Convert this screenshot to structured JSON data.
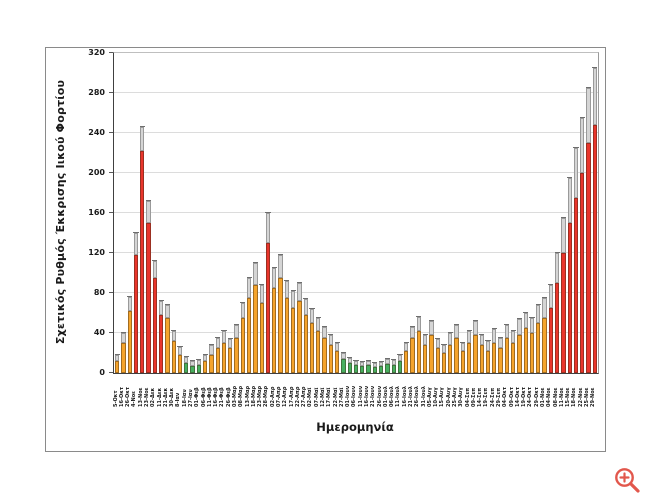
{
  "chart": {
    "box_border_color": "#8a8a8a",
    "axis_color": "#404040",
    "grid_color": "#dcdcdc",
    "error_fill": "#d5d5d5",
    "error_edge": "#9a9a9a",
    "error_cap": "#6e6e6e",
    "bar_outline": "rgba(60,40,20,0.45)"
  },
  "chart_data": {
    "type": "bar",
    "title": "",
    "xlabel": "Ημερομηνία",
    "ylabel": "Σχετικός Ρυθμός Έκκρισης Ιικού Φορτίου",
    "ylim": [
      0,
      320
    ],
    "y_tick_step": 40,
    "y_ticks": [
      0,
      40,
      80,
      120,
      160,
      200,
      240,
      280,
      320
    ],
    "grid": true,
    "legend": "none",
    "error_bars": "upper",
    "color_map": {
      "orange": "#F5A42C",
      "red": "#E9352C",
      "green": "#46AF5F"
    },
    "categories": [
      "5-Οκτ",
      "16-Οκτ",
      "26-Οκτ",
      "4-Νοε",
      "13-Νοε",
      "23-Νοε",
      "02-Δεκ",
      "11-Δεκ",
      "21-Δεκ",
      "30-Δεκ",
      "8-Ιαν",
      "18-Ιαν",
      "27-Ιαν",
      "01-Φεβ",
      "06-Φεβ",
      "11-Φεβ",
      "16-Φεβ",
      "21-Φεβ",
      "26-Φεβ",
      "03-Μαρ",
      "08-Μαρ",
      "13-Μαρ",
      "18-Μαρ",
      "23-Μαρ",
      "28-Μαρ",
      "02-Απρ",
      "07-Απρ",
      "12-Απρ",
      "17-Απρ",
      "22-Απρ",
      "27-Απρ",
      "02-Μαϊ",
      "07-Μαϊ",
      "12-Μαϊ",
      "17-Μαϊ",
      "22-Μαϊ",
      "27-Μαϊ",
      "01-Ιουν",
      "06-Ιουν",
      "11-Ιουν",
      "16-Ιουν",
      "21-Ιουν",
      "26-Ιουν",
      "01-Ιουλ",
      "06-Ιουλ",
      "11-Ιουλ",
      "16-Ιουλ",
      "21-Ιουλ",
      "26-Ιουλ",
      "31-Ιουλ",
      "05-Αυγ",
      "10-Αυγ",
      "15-Αυγ",
      "20-Αυγ",
      "25-Αυγ",
      "30-Αυγ",
      "04-Σεπ",
      "09-Σεπ",
      "14-Σεπ",
      "19-Σεπ",
      "24-Σεπ",
      "29-Σεπ",
      "04-Οκτ",
      "09-Οκτ",
      "14-Οκτ",
      "19-Οκτ",
      "24-Οκτ",
      "29-Οκτ",
      "01-Νοε",
      "04-Νοε",
      "08-Νοε",
      "11-Νοε",
      "15-Νοε",
      "18-Νοε",
      "22-Νοε",
      "25-Νοε",
      "29-Νοε"
    ],
    "values": [
      12,
      30,
      62,
      118,
      222,
      150,
      95,
      58,
      55,
      32,
      18,
      10,
      7,
      8,
      12,
      18,
      25,
      30,
      25,
      35,
      55,
      75,
      88,
      70,
      130,
      85,
      95,
      75,
      65,
      72,
      58,
      50,
      42,
      35,
      28,
      22,
      14,
      10,
      8,
      7,
      8,
      6,
      7,
      9,
      8,
      12,
      22,
      35,
      42,
      28,
      38,
      25,
      20,
      28,
      35,
      22,
      30,
      38,
      28,
      22,
      30,
      25,
      35,
      30,
      38,
      45,
      40,
      50,
      55,
      65,
      90,
      120,
      150,
      175,
      200,
      230,
      248
    ],
    "upper_ci": [
      18,
      40,
      76,
      140,
      246,
      172,
      112,
      72,
      68,
      42,
      26,
      16,
      12,
      13,
      18,
      28,
      35,
      42,
      34,
      48,
      70,
      95,
      110,
      88,
      160,
      105,
      118,
      92,
      82,
      90,
      74,
      64,
      55,
      46,
      38,
      30,
      20,
      15,
      12,
      11,
      12,
      10,
      11,
      14,
      13,
      18,
      30,
      46,
      56,
      38,
      52,
      34,
      28,
      40,
      48,
      30,
      42,
      52,
      38,
      32,
      44,
      35,
      48,
      42,
      54,
      60,
      55,
      68,
      75,
      88,
      120,
      155,
      195,
      225,
      255,
      285,
      305
    ],
    "colors": [
      "orange",
      "orange",
      "orange",
      "red",
      "red",
      "red",
      "red",
      "red",
      "orange",
      "orange",
      "orange",
      "green",
      "green",
      "green",
      "orange",
      "orange",
      "orange",
      "orange",
      "orange",
      "orange",
      "orange",
      "orange",
      "orange",
      "orange",
      "red",
      "orange",
      "orange",
      "orange",
      "orange",
      "orange",
      "orange",
      "orange",
      "orange",
      "orange",
      "orange",
      "orange",
      "green",
      "green",
      "green",
      "green",
      "green",
      "green",
      "green",
      "green",
      "green",
      "green",
      "orange",
      "orange",
      "orange",
      "orange",
      "orange",
      "orange",
      "orange",
      "orange",
      "orange",
      "orange",
      "orange",
      "orange",
      "orange",
      "orange",
      "orange",
      "orange",
      "orange",
      "orange",
      "orange",
      "orange",
      "orange",
      "orange",
      "orange",
      "red",
      "red",
      "red",
      "red",
      "red",
      "red",
      "red",
      "red"
    ]
  },
  "icons": {
    "zoom_in": {
      "glyph": "magnifier-plus",
      "color": "#E2574C"
    }
  }
}
